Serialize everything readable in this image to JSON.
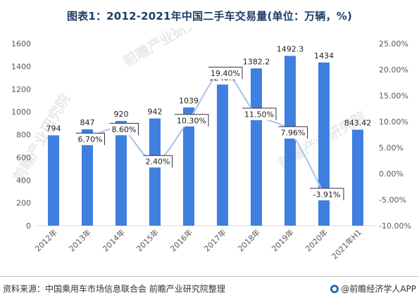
{
  "title": "图表1：2012-2021年中国二手车交易量(单位：万辆，%)",
  "source": "资料来源：中国乘用车市场信息联合会 前瞻产业研究院整理",
  "brand": "@前瞻经济学人APP",
  "watermark": "前瞻产业研究院",
  "colors": {
    "bar": "#3f7fe0",
    "line": "#a9c8ec",
    "axis": "#d9d9d9",
    "text": "#595959"
  },
  "chart_data": {
    "type": "bar",
    "categories": [
      "2012年",
      "2013年",
      "2014年",
      "2015年",
      "2016年",
      "2017年",
      "2018年",
      "2019年",
      "2020年",
      "2021年H1"
    ],
    "series": [
      {
        "type": "bar",
        "axis": "left",
        "values": [
          794,
          847,
          920,
          942,
          1039,
          1240.1,
          1382.2,
          1492.3,
          1434,
          843.42
        ],
        "labels": [
          "794",
          "847",
          "920",
          "942",
          "1039",
          "1240.1",
          "1382.2",
          "1492.3",
          "1434",
          "843.42"
        ]
      },
      {
        "type": "line",
        "axis": "right",
        "values": [
          null,
          6.7,
          8.6,
          2.4,
          10.3,
          19.4,
          11.5,
          7.96,
          -3.91,
          null
        ],
        "labels": [
          "",
          "6.70%",
          "8.60%",
          "2.40%",
          "10.30%",
          "19.40%",
          "11.50%",
          "7.96%",
          "-3.91%",
          ""
        ]
      }
    ],
    "y_left": {
      "range": [
        0,
        1600
      ],
      "ticks": [
        "0",
        "200",
        "400",
        "600",
        "800",
        "1000",
        "1200",
        "1400",
        "1600"
      ]
    },
    "y_right": {
      "range": [
        -10,
        25
      ],
      "ticks": [
        "-10.00%",
        "-5.00%",
        "0.00%",
        "5.00%",
        "10.00%",
        "15.00%",
        "20.00%",
        "25.00%"
      ]
    },
    "grid": false,
    "legend": "none"
  }
}
